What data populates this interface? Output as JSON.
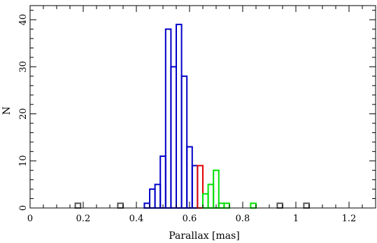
{
  "chart_data": {
    "type": "histogram",
    "xlabel": "Parallax [mas]",
    "ylabel": "N",
    "xlim": [
      0,
      1.3
    ],
    "ylim": [
      0,
      43
    ],
    "bin_width": 0.02,
    "x_ticks": [
      "0",
      "0.2",
      "0.4",
      "0.6",
      "0.8",
      "1",
      "1.2"
    ],
    "y_ticks": [
      "0",
      "10",
      "20",
      "30",
      "40"
    ],
    "grid": false,
    "series": [
      {
        "color": "#0000c8",
        "bins": [
          [
            0.43,
            0.45,
            1
          ],
          [
            0.45,
            0.47,
            4
          ],
          [
            0.47,
            0.49,
            5
          ],
          [
            0.49,
            0.51,
            11
          ],
          [
            0.51,
            0.53,
            38
          ],
          [
            0.53,
            0.55,
            30
          ],
          [
            0.55,
            0.57,
            39
          ],
          [
            0.57,
            0.59,
            28
          ],
          [
            0.59,
            0.61,
            13
          ],
          [
            0.61,
            0.63,
            9
          ]
        ]
      },
      {
        "color": "#e00000",
        "bins": [
          [
            0.63,
            0.65,
            9
          ]
        ]
      },
      {
        "color": "#00e000",
        "bins": [
          [
            0.65,
            0.67,
            3
          ],
          [
            0.67,
            0.69,
            5
          ],
          [
            0.69,
            0.71,
            8
          ],
          [
            0.71,
            0.73,
            1
          ],
          [
            0.73,
            0.75,
            1
          ],
          [
            0.75,
            0.77,
            0
          ],
          [
            0.77,
            0.79,
            0
          ],
          [
            0.79,
            0.81,
            0
          ],
          [
            0.81,
            0.83,
            0
          ],
          [
            0.83,
            0.85,
            1
          ]
        ]
      },
      {
        "color": "#555555",
        "bins": [
          [
            0.17,
            0.19,
            1
          ],
          [
            0.33,
            0.35,
            1
          ],
          [
            0.93,
            0.95,
            1
          ],
          [
            1.03,
            1.05,
            1
          ]
        ]
      }
    ]
  }
}
